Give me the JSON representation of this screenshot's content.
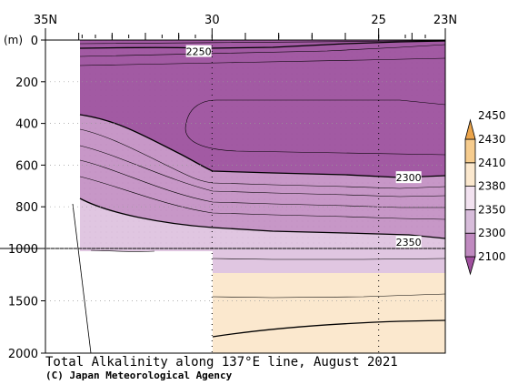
{
  "chart_data": {
    "type": "heatmap",
    "title": "Total Alkalinity along 137°E line, August 2021",
    "credit": "(C) Japan Meteorological Agency",
    "x_axis": {
      "left_label": "35N",
      "right_label": "23N",
      "ticks": [
        {
          "lat": 30,
          "label": "30"
        },
        {
          "lat": 25,
          "label": "25"
        }
      ],
      "range": [
        35,
        23
      ]
    },
    "y_axis": {
      "unit_label": "(m)",
      "ticks_upper": [
        0,
        200,
        400,
        600,
        800,
        1000
      ],
      "ticks_lower": [
        1500,
        2000
      ],
      "tick_labels": [
        "0",
        "200",
        "400",
        "600",
        "800",
        "1000",
        "1500",
        "2000"
      ],
      "range": [
        0,
        2000
      ],
      "scale_break_depth": 1000
    },
    "colorbar": {
      "labels": [
        "2100",
        "2300",
        "2350",
        "2380",
        "2410",
        "2430",
        "2450"
      ],
      "colors": [
        "#a0509e",
        "#c08ac0",
        "#d7bcda",
        "#f2e2f0",
        "#fbe8ce",
        "#f6cc8e",
        "#eba44a"
      ]
    },
    "contour_labels": [
      {
        "text": "2250",
        "lat": 30.4,
        "depth": 55
      },
      {
        "text": "2300",
        "lat": 24.1,
        "depth": 660
      },
      {
        "text": "2350",
        "lat": 24.1,
        "depth": 970
      }
    ],
    "regions": [
      {
        "value_range": "2100-2300",
        "lat_from": 33.9,
        "lat_to": 23.2,
        "depth_from": 0,
        "depth_to": 640
      },
      {
        "value_range": "2300-2350",
        "lat_from": 33.9,
        "lat_to": 23.2,
        "depth_from": 360,
        "depth_to": 960
      },
      {
        "value_range": "2350-2380",
        "lat_from": 33.9,
        "lat_to": 23.2,
        "depth_from": 760,
        "depth_to": 1200
      },
      {
        "value_range": "2380-2410",
        "lat_from": 30.0,
        "lat_to": 23.2,
        "depth_from": 1200,
        "depth_to": 2000
      }
    ]
  }
}
